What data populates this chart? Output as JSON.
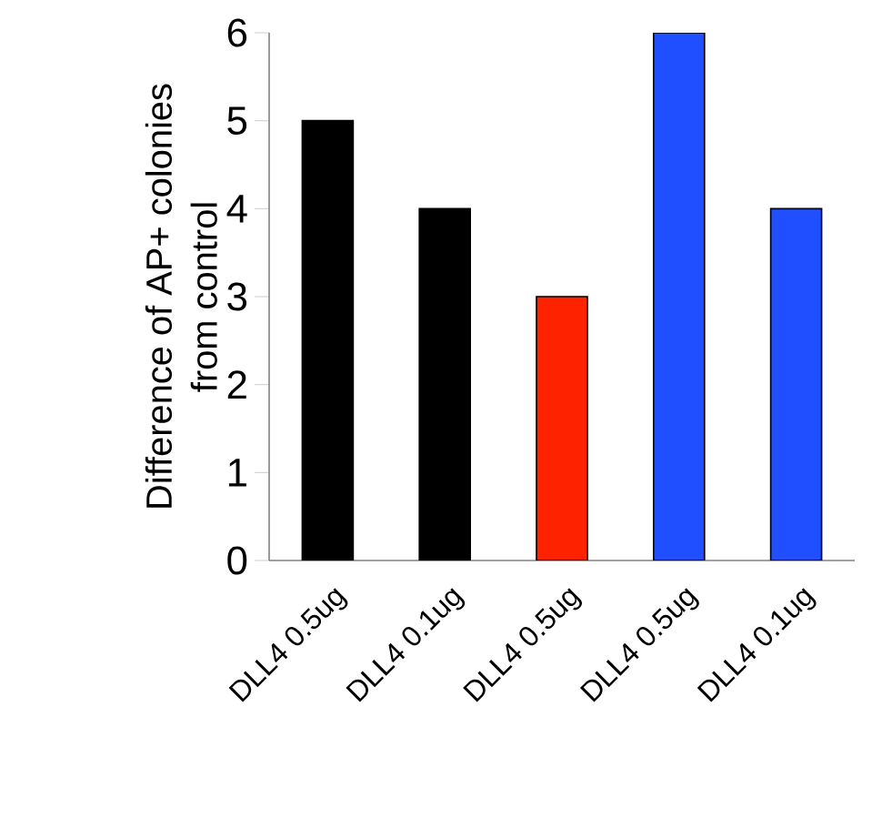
{
  "chart_data": {
    "type": "bar",
    "ylabel": "Difference of AP+ colonies from control",
    "categories": [
      "DLL4 0.5ug",
      "DLL4 0.1ug",
      "DLL4 0.5ug",
      "DLL4 0.5ug",
      "DLL4 0.1ug"
    ],
    "values": [
      5,
      4,
      3,
      6,
      4
    ],
    "colors": [
      "#000000",
      "#000000",
      "#ff2200",
      "#1f4fff",
      "#1f4fff"
    ],
    "ylim": [
      0,
      6
    ],
    "yticks": [
      0,
      1,
      2,
      3,
      4,
      5,
      6
    ],
    "grid": false
  }
}
